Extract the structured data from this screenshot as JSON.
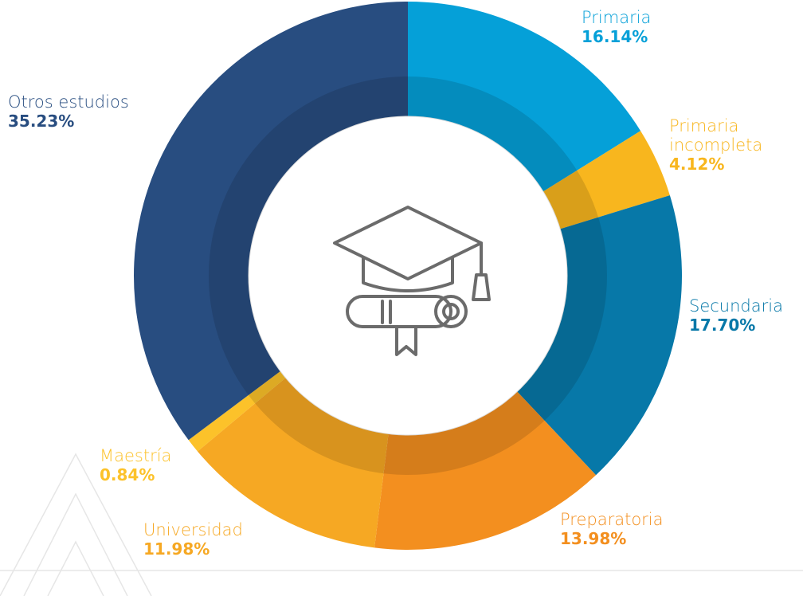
{
  "chart_data": {
    "type": "donut",
    "categories": [
      "Primaria",
      "Primaria incompleta",
      "Secundaria",
      "Preparatoria",
      "Universidad",
      "Maestría",
      "Otros estudios"
    ],
    "values": [
      16.14,
      4.12,
      17.7,
      13.98,
      11.98,
      0.84,
      35.23
    ],
    "value_labels": [
      "16.14%",
      "4.12%",
      "17.70%",
      "13.98%",
      "11.98%",
      "0.84%",
      "35.23%"
    ],
    "colors": [
      "#05a0d8",
      "#f8b61e",
      "#0778a8",
      "#f38f1f",
      "#f6a823",
      "#fcc22a",
      "#284d80"
    ]
  }
}
